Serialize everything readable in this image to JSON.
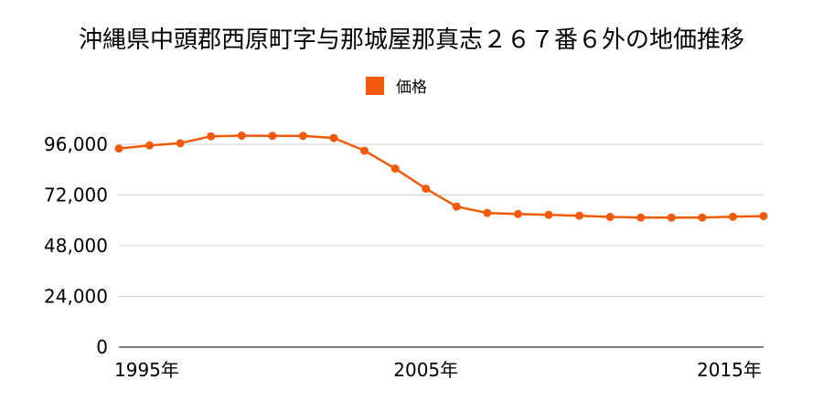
{
  "chart_data": {
    "type": "line",
    "title": "沖縄県中頭郡西原町字与那城屋那真志２６７番６外の地価推移",
    "legend": {
      "position": "top-center",
      "label": "価格"
    },
    "x": [
      1995,
      1996,
      1997,
      1998,
      1999,
      2000,
      2001,
      2002,
      2003,
      2004,
      2005,
      2006,
      2007,
      2008,
      2009,
      2010,
      2011,
      2012,
      2013,
      2014,
      2015,
      2016
    ],
    "x_tick_labels": [
      {
        "x": 1995,
        "label": "1995年"
      },
      {
        "x": 2005,
        "label": "2005年"
      },
      {
        "x": 2015,
        "label": "2015年"
      }
    ],
    "y_ticks": [
      0,
      24000,
      48000,
      72000,
      96000
    ],
    "y_tick_labels": [
      "0",
      "24,000",
      "48,000",
      "72,000",
      "96,000"
    ],
    "ylim": [
      0,
      96000
    ],
    "xlim": [
      1995,
      2016
    ],
    "grid": true,
    "series": [
      {
        "name": "価格",
        "color": "#f05a0a",
        "values": [
          94000,
          95500,
          96500,
          99800,
          100100,
          100000,
          100000,
          99000,
          93000,
          84500,
          75000,
          66500,
          63500,
          63000,
          62600,
          62200,
          61600,
          61300,
          61300,
          61300,
          61700,
          62000
        ]
      }
    ]
  }
}
